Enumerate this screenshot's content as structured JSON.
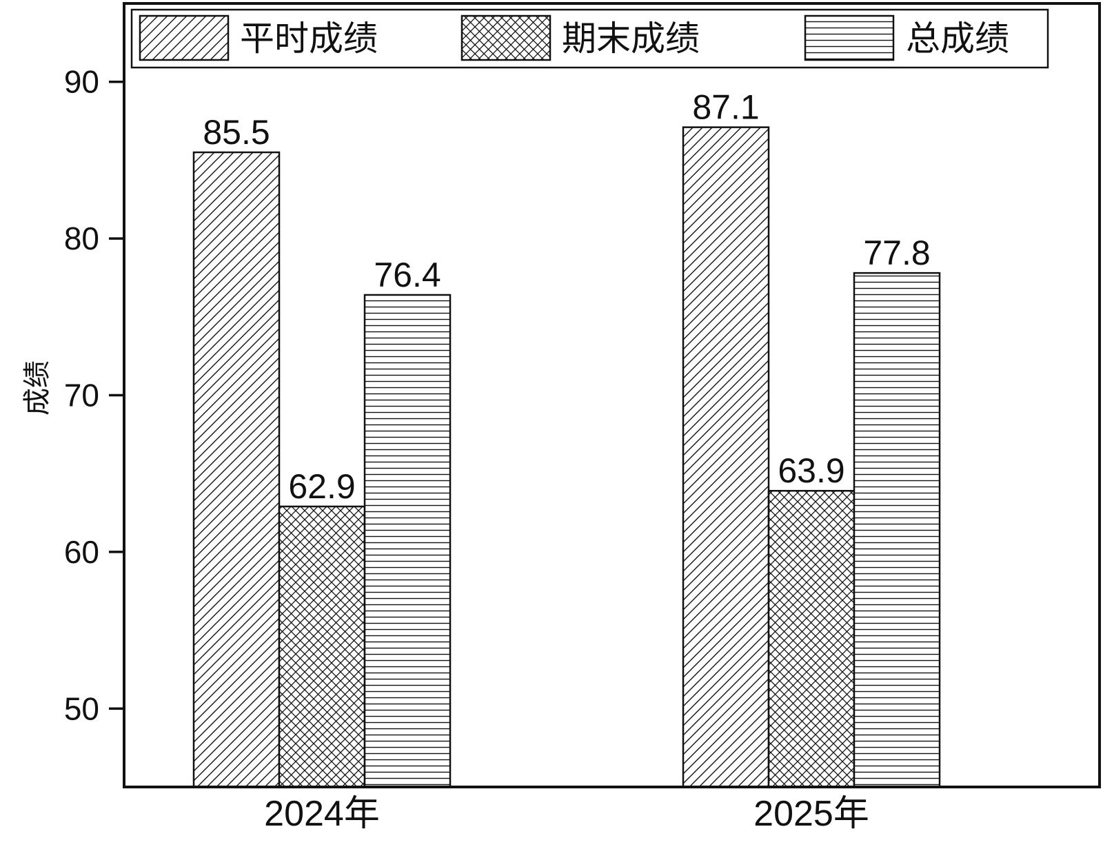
{
  "chart_data": {
    "type": "bar",
    "categories": [
      "2024年",
      "2025年"
    ],
    "series": [
      {
        "name": "平时成绩",
        "values": [
          85.5,
          87.1
        ],
        "pattern": "diagonal"
      },
      {
        "name": "期末成绩",
        "values": [
          62.9,
          63.9
        ],
        "pattern": "crosshatch"
      },
      {
        "name": "总成绩",
        "values": [
          76.4,
          77.8
        ],
        "pattern": "horizontal"
      }
    ],
    "data_labels": [
      [
        "85.5",
        "87.1"
      ],
      [
        "62.9",
        "63.9"
      ],
      [
        "76.4",
        "77.8"
      ]
    ],
    "ylabel": "成绩",
    "xlabel": "",
    "ylim": [
      45,
      95
    ],
    "yticks": [
      50,
      60,
      70,
      80,
      90
    ],
    "ytick_labels": [
      "50",
      "60",
      "70",
      "80",
      "90"
    ],
    "grid": false,
    "legend_placement": "top, horizontal, boxed",
    "colors": {
      "stroke": "#111111",
      "background": "#ffffff"
    }
  }
}
